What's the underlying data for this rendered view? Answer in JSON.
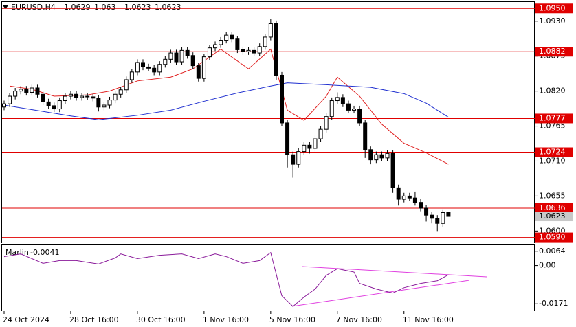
{
  "chart_data": [
    {
      "type": "candlestick",
      "title": "EURUSD,H4",
      "categories": [
        "24 Oct 2024",
        null,
        null,
        null,
        null,
        null,
        null,
        null,
        null,
        null,
        null,
        null,
        "28 Oct 16:00",
        null,
        null,
        null,
        null,
        null,
        null,
        null,
        null,
        null,
        null,
        null,
        "30 Oct 16:00",
        null,
        null,
        null,
        null,
        null,
        null,
        null,
        null,
        null,
        null,
        null,
        "1 Nov 16:00",
        null,
        null,
        null,
        null,
        null,
        null,
        null,
        null,
        null,
        null,
        null,
        "5 Nov 16:00",
        null,
        null,
        null,
        null,
        null,
        null,
        null,
        null,
        null,
        null,
        null,
        "7 Nov 16:00",
        null,
        null,
        null,
        null,
        null,
        null,
        null,
        null,
        null,
        null,
        null,
        "11 Nov 16:00",
        null,
        null,
        null,
        null,
        null,
        null,
        null,
        null
      ],
      "open": [
        1.0795,
        1.08,
        1.0812,
        1.082,
        1.0823,
        1.0818,
        1.0825,
        1.0815,
        1.0803,
        1.0797,
        1.0792,
        1.0805,
        1.0812,
        1.0815,
        1.081,
        1.0812,
        1.0811,
        1.0809,
        1.0795,
        1.0798,
        1.0806,
        1.0815,
        1.0822,
        1.0838,
        1.085,
        1.0865,
        1.0858,
        1.0856,
        1.085,
        1.0862,
        1.087,
        1.088,
        1.0866,
        1.0884,
        1.0876,
        1.086,
        1.084,
        1.0874,
        1.0888,
        1.0893,
        1.09,
        1.0908,
        1.0902,
        1.0885,
        1.0882,
        1.0884,
        1.088,
        1.089,
        1.0905,
        1.0926,
        1.0845,
        1.077,
        1.072,
        1.0705,
        1.0725,
        1.0735,
        1.073,
        1.0745,
        1.076,
        1.078,
        1.0805,
        1.081,
        1.08,
        1.079,
        1.0792,
        1.077,
        1.0728,
        1.0712,
        1.072,
        1.0715,
        1.0722,
        1.0668,
        1.065,
        1.0655,
        1.0652,
        1.0645,
        1.0636,
        1.0625,
        1.062,
        1.0612,
        1.0629
      ],
      "high": [
        1.0805,
        1.0817,
        1.0825,
        1.0828,
        1.0828,
        1.083,
        1.083,
        1.082,
        1.0808,
        1.0802,
        1.081,
        1.0817,
        1.082,
        1.082,
        1.0817,
        1.0817,
        1.0816,
        1.0814,
        1.0803,
        1.0811,
        1.082,
        1.0827,
        1.0843,
        1.0855,
        1.087,
        1.087,
        1.0863,
        1.0861,
        1.0867,
        1.0875,
        1.0885,
        1.0885,
        1.0889,
        1.0889,
        1.0881,
        1.0865,
        1.0879,
        1.0893,
        1.0898,
        1.0905,
        1.0913,
        1.0913,
        1.0907,
        1.089,
        1.0889,
        1.0889,
        1.0895,
        1.091,
        1.0933,
        1.0931,
        1.085,
        1.0775,
        1.0725,
        1.073,
        1.074,
        1.074,
        1.075,
        1.0765,
        1.0785,
        1.081,
        1.0818,
        1.0815,
        1.0805,
        1.0797,
        1.0797,
        1.0775,
        1.0733,
        1.0725,
        1.0725,
        1.0727,
        1.0727,
        1.0673,
        1.066,
        1.066,
        1.0662,
        1.065,
        1.0641,
        1.063,
        1.0625,
        1.0634,
        1.063
      ],
      "low": [
        1.079,
        1.0795,
        1.0807,
        1.0815,
        1.0813,
        1.0813,
        1.081,
        1.0798,
        1.0792,
        1.0787,
        1.0787,
        1.08,
        1.0807,
        1.0805,
        1.0805,
        1.0806,
        1.0804,
        1.0788,
        1.079,
        1.0793,
        1.0801,
        1.081,
        1.0817,
        1.0833,
        1.0845,
        1.0853,
        1.0851,
        1.0845,
        1.0845,
        1.0857,
        1.0865,
        1.0861,
        1.0861,
        1.0871,
        1.0855,
        1.0835,
        1.0835,
        1.0869,
        1.0883,
        1.0888,
        1.0895,
        1.0897,
        1.088,
        1.0877,
        1.0877,
        1.0875,
        1.0875,
        1.0885,
        1.09,
        1.0838,
        1.0765,
        1.07,
        1.0684,
        1.07,
        1.072,
        1.0722,
        1.0725,
        1.074,
        1.0755,
        1.0775,
        1.08,
        1.0795,
        1.0785,
        1.0785,
        1.0765,
        1.0715,
        1.0705,
        1.0707,
        1.071,
        1.071,
        1.066,
        1.064,
        1.0645,
        1.0647,
        1.064,
        1.0631,
        1.0615,
        1.0612,
        1.06,
        1.0607,
        1.0623
      ],
      "close": [
        1.08,
        1.0812,
        1.082,
        1.0823,
        1.0818,
        1.0825,
        1.0815,
        1.0803,
        1.0797,
        1.0792,
        1.0805,
        1.0812,
        1.0815,
        1.081,
        1.0812,
        1.0811,
        1.0809,
        1.0795,
        1.0798,
        1.0806,
        1.0815,
        1.0822,
        1.0838,
        1.085,
        1.0865,
        1.0858,
        1.0856,
        1.085,
        1.0862,
        1.087,
        1.088,
        1.0866,
        1.0884,
        1.0876,
        1.086,
        1.084,
        1.0874,
        1.0888,
        1.0893,
        1.09,
        1.0908,
        1.0902,
        1.0885,
        1.0882,
        1.0884,
        1.088,
        1.089,
        1.0905,
        1.0926,
        1.0845,
        1.077,
        1.072,
        1.0705,
        1.0725,
        1.0735,
        1.073,
        1.0745,
        1.076,
        1.078,
        1.0805,
        1.081,
        1.08,
        1.079,
        1.0792,
        1.077,
        1.0728,
        1.0712,
        1.072,
        1.0715,
        1.0722,
        1.0668,
        1.065,
        1.0655,
        1.0652,
        1.0645,
        1.0636,
        1.0625,
        1.062,
        1.0612,
        1.0629,
        1.0623
      ],
      "up_color": "#ffffff",
      "down_color": "#000000",
      "wick_color": "#000000",
      "moving_averages": [
        {
          "color": "#e02020",
          "x": [
            1,
            5,
            9,
            15,
            19,
            24,
            30,
            34,
            39,
            44,
            48,
            51,
            54,
            58,
            60,
            64,
            68,
            72,
            76,
            80
          ],
          "values": [
            1.0828,
            1.0823,
            1.0812,
            1.0814,
            1.082,
            1.0836,
            1.0842,
            1.0855,
            1.0886,
            1.0855,
            1.0886,
            1.079,
            1.0774,
            1.0812,
            1.0842,
            1.0812,
            1.0768,
            1.0738,
            1.0723,
            1.0705
          ]
        },
        {
          "color": "#2030d0",
          "x": [
            0,
            12,
            17,
            24,
            30,
            36,
            42,
            48,
            51,
            58,
            66,
            72,
            76,
            80
          ],
          "values": [
            1.0798,
            1.0781,
            1.0775,
            1.0782,
            1.079,
            1.0804,
            1.0817,
            1.0828,
            1.0833,
            1.083,
            1.0826,
            1.0816,
            1.0801,
            1.0779
          ]
        }
      ],
      "hlines": [
        {
          "value": 1.095,
          "label": "1.0950"
        },
        1.0882,
        1.0777,
        1.0724,
        1.0636,
        {
          "value": 1.059,
          "label": "1.0590"
        }
      ],
      "hline_color": "#e00000",
      "last_price_color": "#c8c8c8",
      "ylim": [
        1.0582,
        1.096
      ],
      "yticks": [
        {
          "value": 1.093,
          "label": "1.0930"
        },
        {
          "value": 1.0875,
          "label": "1.0875"
        },
        {
          "value": 1.082,
          "label": "1.0820"
        },
        {
          "value": 1.0765,
          "label": "1.0765"
        },
        {
          "value": 1.071,
          "label": "1.0710"
        },
        {
          "value": 1.0655,
          "label": "1.0655"
        },
        {
          "value": 1.06,
          "label": "1.0600"
        }
      ]
    },
    {
      "type": "line",
      "title": "Marlin",
      "last_value": -0.0041,
      "color": "#8a1a9a",
      "x": [
        0,
        3,
        7,
        10,
        13,
        17,
        20,
        21,
        24,
        28,
        32,
        35,
        38,
        40,
        43,
        46,
        48,
        50,
        52,
        54,
        56,
        58,
        60,
        63,
        64,
        67,
        70,
        72,
        75,
        78,
        80
      ],
      "values": [
        0.004,
        0.0052,
        0.001,
        0.0022,
        0.0022,
        0.0007,
        0.0034,
        0.0052,
        0.0031,
        0.0046,
        0.0052,
        0.0031,
        0.0052,
        0.004,
        0.001,
        0.0022,
        0.0058,
        -0.0135,
        -0.0183,
        -0.0141,
        -0.0105,
        -0.0044,
        -0.0014,
        -0.0029,
        -0.008,
        -0.0105,
        -0.0123,
        -0.0099,
        -0.008,
        -0.0068,
        -0.0041
      ],
      "ylim": [
        -0.0201,
        0.0094
      ],
      "yticks": [
        0.0064,
        {
          "value": 0,
          "label": "0.00"
        },
        -0.0171
      ]
    }
  ]
}
